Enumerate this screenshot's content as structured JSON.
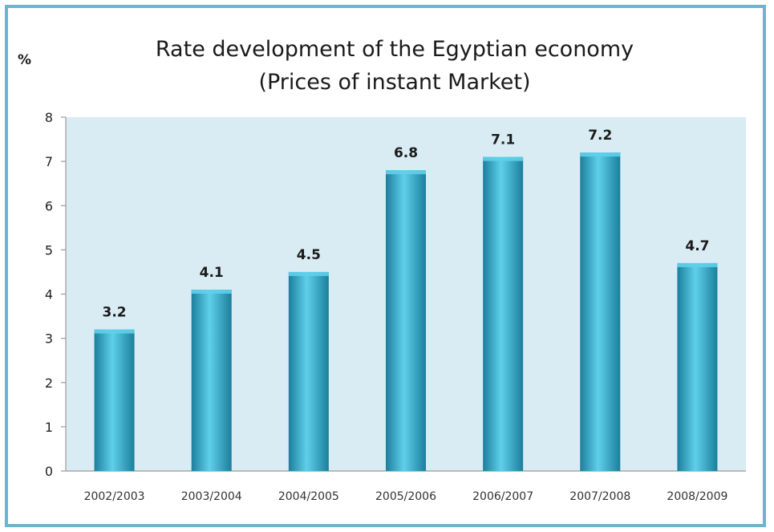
{
  "chart_data": {
    "type": "bar",
    "title": "Rate development of the Egyptian economy",
    "subtitle": "(Prices of instant Market)",
    "ylabel": "%",
    "xlabel": "",
    "categories": [
      "2002/2003",
      "2003/2004",
      "2004/2005",
      "2005/2006",
      "2006/2007",
      "2007/2008",
      "2008/2009"
    ],
    "values": [
      3.2,
      4.1,
      4.5,
      6.8,
      7.1,
      7.2,
      4.7
    ],
    "data_labels": [
      "3.2",
      "4.1",
      "4.5",
      "6.8",
      "7.1",
      "7.2",
      "4.7"
    ],
    "ylim": [
      0,
      8
    ],
    "yticks": [
      0,
      1,
      2,
      3,
      4,
      5,
      6,
      7,
      8
    ],
    "grid": false,
    "legend": "none",
    "colors": {
      "bar": "#2aa3c4",
      "bar_light": "#5fd0ea",
      "bar_dark": "#1b7f9c",
      "plot_background": "#d9ecf4",
      "frame": "#6fb3cf"
    }
  }
}
